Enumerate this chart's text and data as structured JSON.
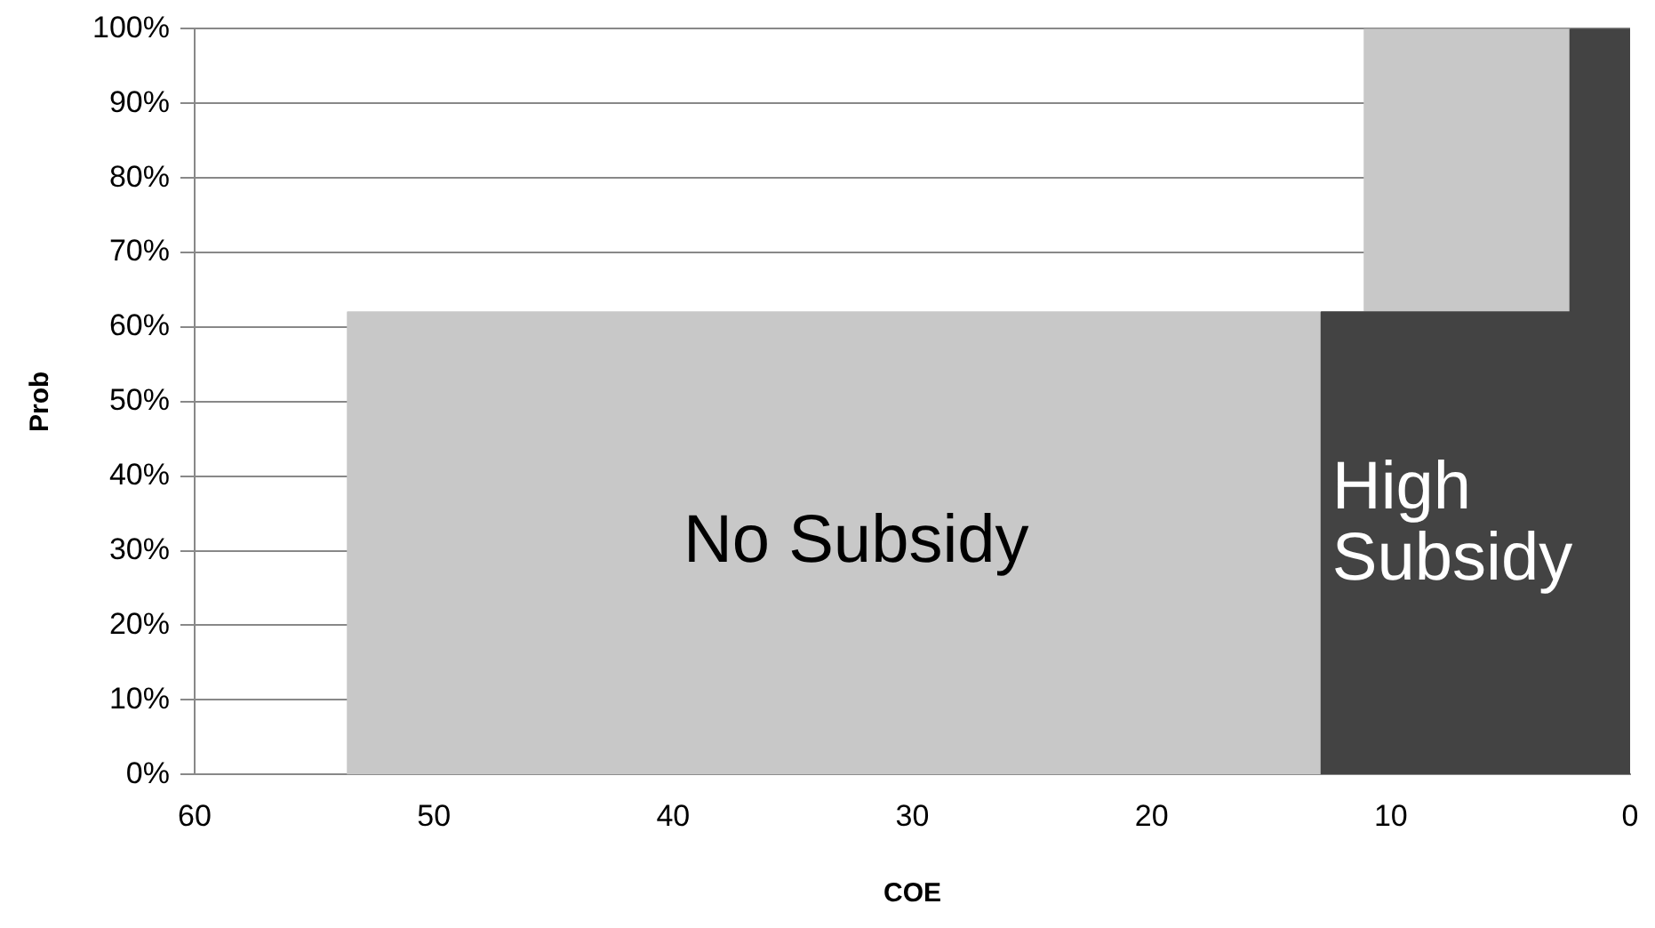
{
  "chart_data": {
    "type": "area",
    "xlabel": "COE",
    "ylabel": "Prob",
    "xlim": [
      60,
      0
    ],
    "xticks": [
      60,
      50,
      40,
      30,
      20,
      10,
      0
    ],
    "ylim": [
      0,
      100
    ],
    "yticks": [
      {
        "value": 0,
        "label": "0%"
      },
      {
        "value": 10,
        "label": "10%"
      },
      {
        "value": 20,
        "label": "20%"
      },
      {
        "value": 30,
        "label": "30%"
      },
      {
        "value": 40,
        "label": "40%"
      },
      {
        "value": 50,
        "label": "50%"
      },
      {
        "value": 60,
        "label": "60%"
      },
      {
        "value": 70,
        "label": "70%"
      },
      {
        "value": 80,
        "label": "80%"
      },
      {
        "value": 90,
        "label": "90%"
      },
      {
        "value": 100,
        "label": "100%"
      }
    ],
    "grid": "y",
    "legend": false,
    "series": [
      {
        "name": "No Subsidy",
        "color": "#c8c8c8",
        "x": [
          53.6,
          53.6,
          11.1,
          11.1,
          2.5
        ],
        "values": [
          0,
          62,
          62,
          100,
          100
        ]
      },
      {
        "name": "High Subsidy",
        "color": "#434343",
        "x": [
          12.9,
          12.9,
          2.5,
          2.5,
          0
        ],
        "values": [
          0,
          62,
          62,
          100,
          100
        ]
      }
    ]
  }
}
